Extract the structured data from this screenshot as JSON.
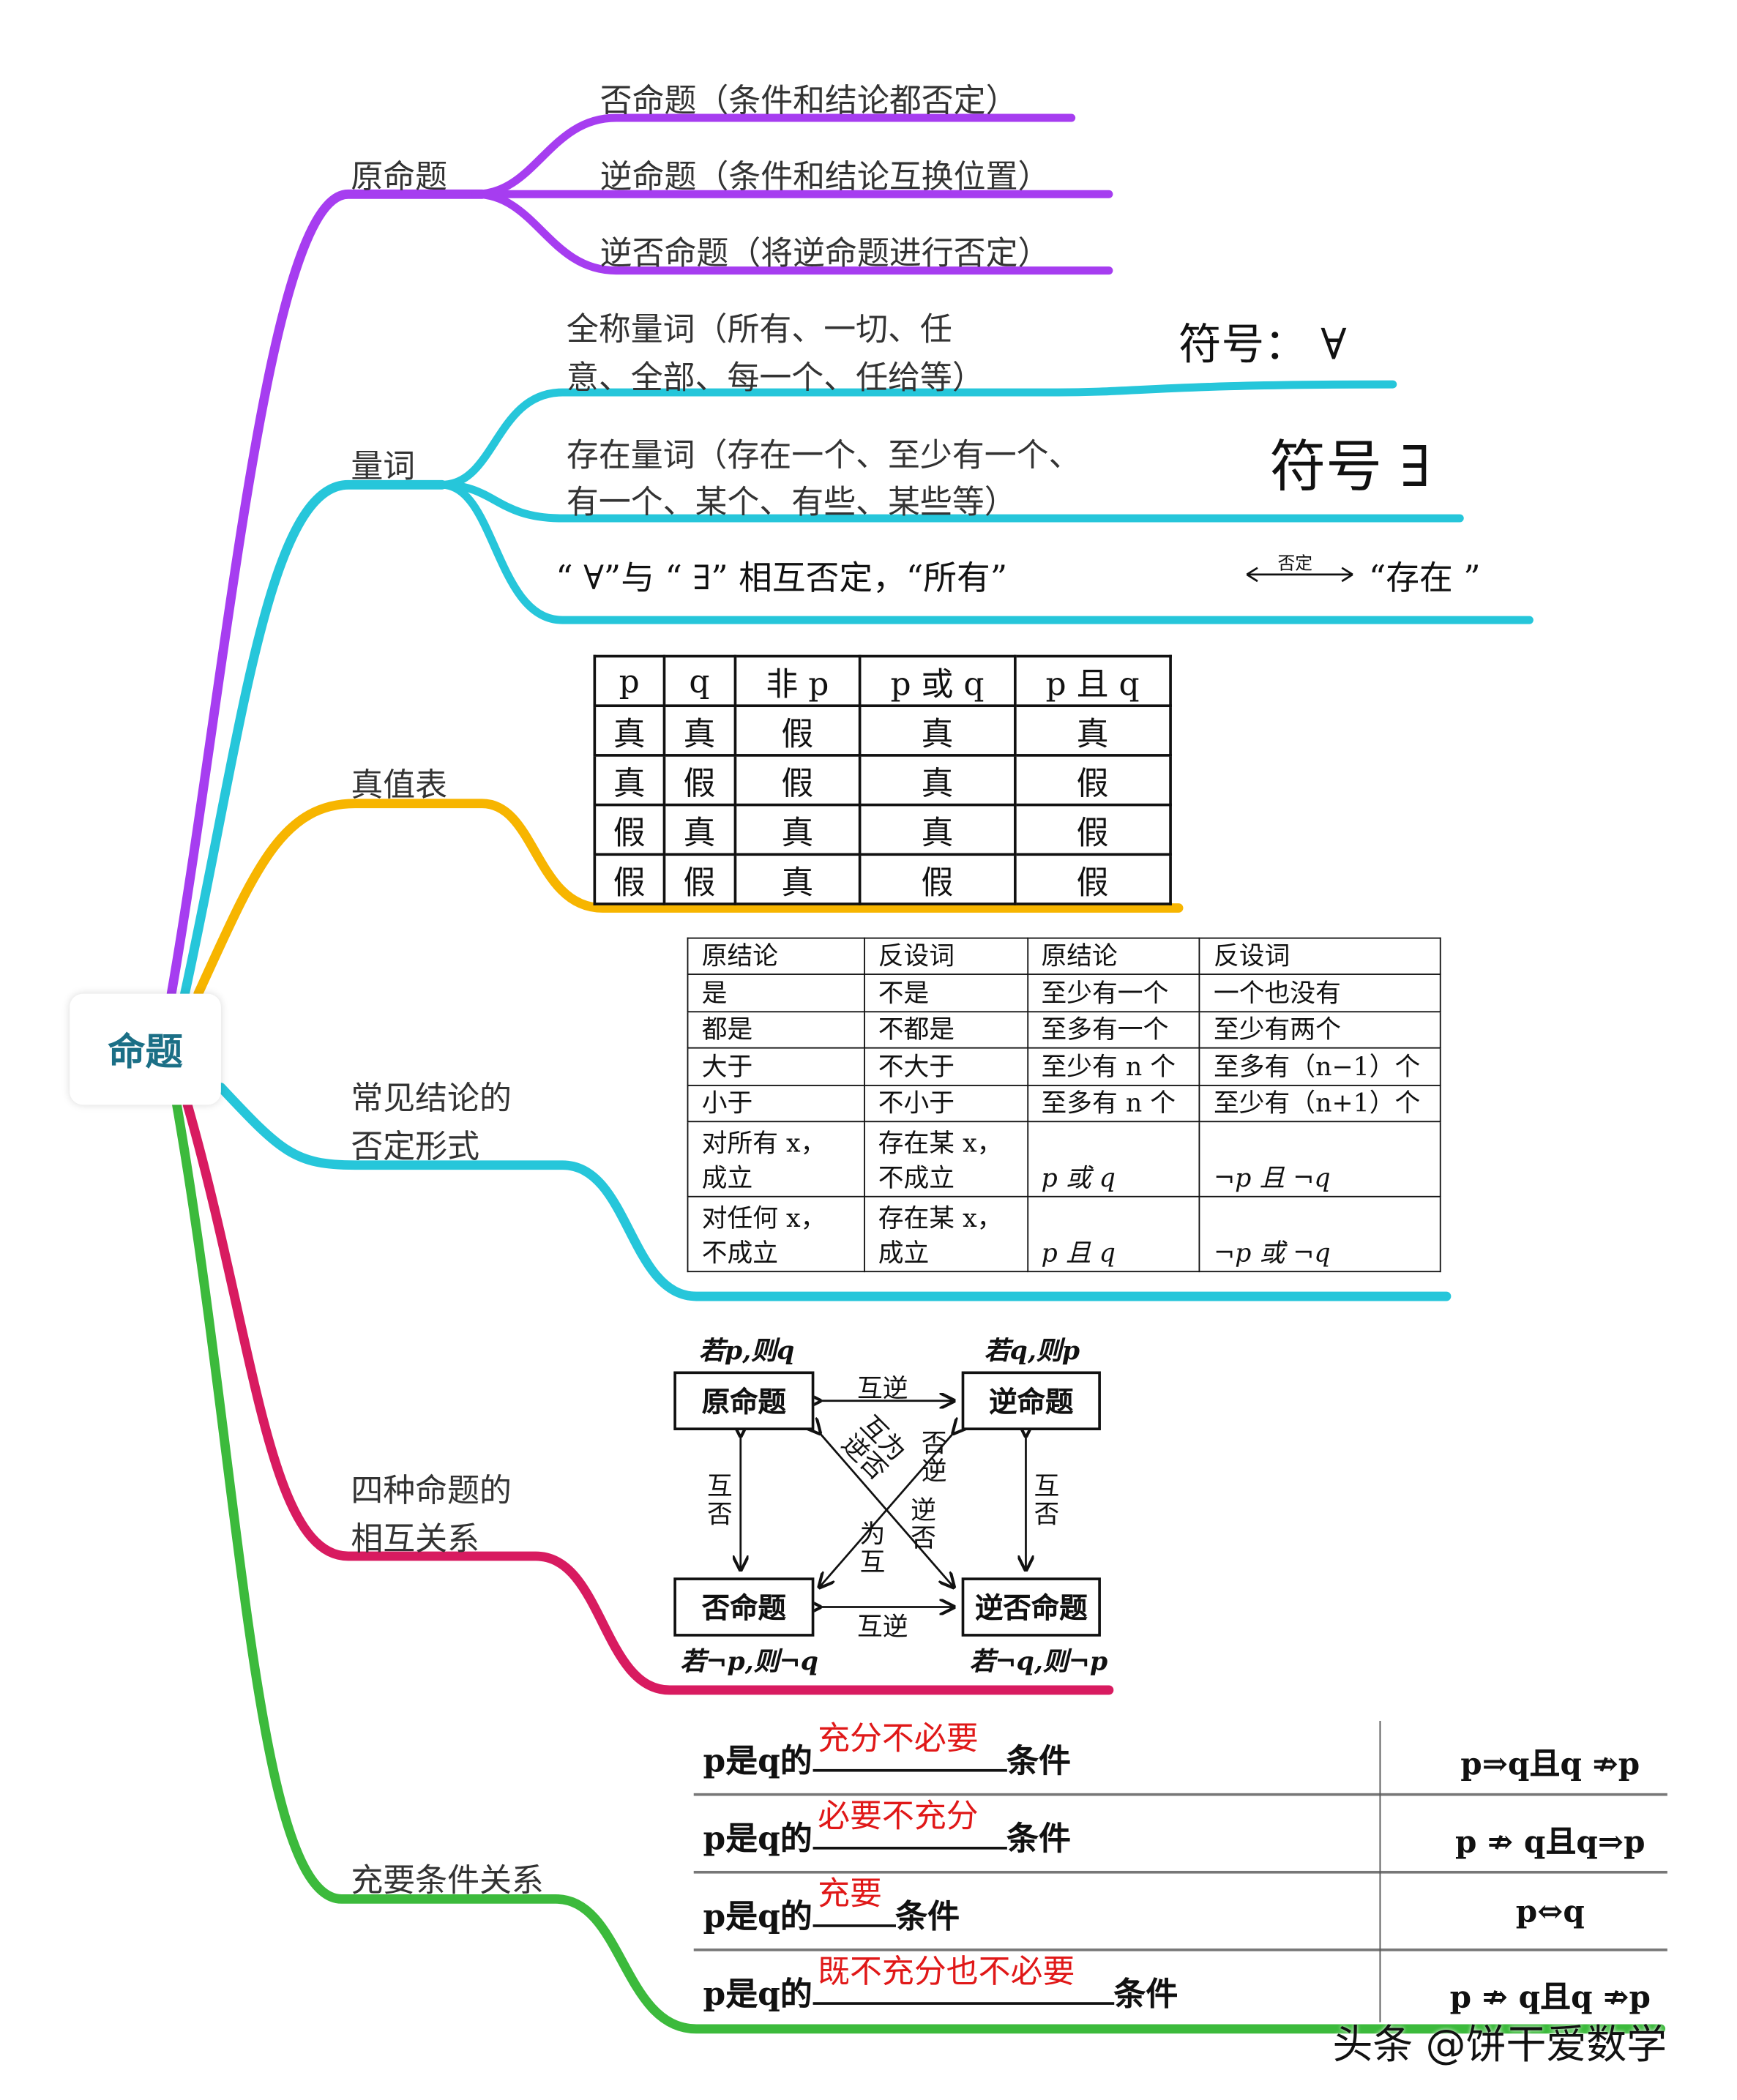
{
  "root": {
    "label": "命题"
  },
  "colors": {
    "purple": "#a63df0",
    "cyan": "#26c6da",
    "yellow": "#f7b500",
    "magenta": "#d81b60",
    "green": "#3cba3c",
    "root_text": "#1b6f86",
    "answer_red": "#e01818"
  },
  "branches": {
    "original": {
      "label": "原命题",
      "children": [
        "否命题（条件和结论都否定）",
        "逆命题（条件和结论互换位置）",
        "逆否命题（将逆命题进行否定）"
      ]
    },
    "quantifier": {
      "label": "量词",
      "universal": {
        "line1": "全称量词（所有、一切、任",
        "line2": "意、全部、每一个、任给等）",
        "symbol": "符号：  ∀"
      },
      "existential": {
        "line1": "存在量词（存在一个、至少有一个、",
        "line2": "有一个、某个、有些、某些等）",
        "symbol": "符号 ∃"
      },
      "negation": {
        "text_left": "“ ∀”与 “ ∃” 相互否定，“所有”",
        "arrow_label": "否定",
        "text_right": "“存在 ”"
      }
    },
    "truth_table": {
      "label": "真值表",
      "headers": [
        "p",
        "q",
        "非 p",
        "p 或 q",
        "p 且 q"
      ],
      "rows": [
        [
          "真",
          "真",
          "假",
          "真",
          "真"
        ],
        [
          "真",
          "假",
          "假",
          "真",
          "假"
        ],
        [
          "假",
          "真",
          "真",
          "真",
          "假"
        ],
        [
          "假",
          "假",
          "真",
          "假",
          "假"
        ]
      ]
    },
    "negation_forms": {
      "label_line1": "常见结论的",
      "label_line2": "否定形式",
      "headers": [
        "原结论",
        "反设词",
        "原结论",
        "反设词"
      ],
      "rows": [
        [
          "是",
          "不是",
          "至少有一个",
          "一个也没有"
        ],
        [
          "都是",
          "不都是",
          "至多有一个",
          "至少有两个"
        ],
        [
          "大于",
          "不大于",
          "至少有 n 个",
          "至多有（n−1）个"
        ],
        [
          "小于",
          "不小于",
          "至多有 n 个",
          "至少有（n+1）个"
        ],
        [
          "对所有 x，\n成立",
          "存在某 x，\n不成立",
          "p 或 q",
          "¬p 且 ¬q"
        ],
        [
          "对任何 x，\n不成立",
          "存在某 x，\n成立",
          "p 且 q",
          "¬p 或 ¬q"
        ]
      ]
    },
    "four_propositions": {
      "label_line1": "四种命题的",
      "label_line2": "相互关系",
      "boxes": {
        "original": "原命题",
        "converse": "逆命题",
        "inverse": "否命题",
        "contrapositive": "逆否命题"
      },
      "forms": {
        "original": "若p,则q",
        "converse": "若q,则p",
        "inverse": "若¬p,则¬q",
        "contrapositive": "若¬q,则¬p"
      },
      "relations": {
        "top": "互逆",
        "bottom": "互逆",
        "left": "互否",
        "right": "互否",
        "diag1": "互为逆否",
        "diag2": "否逆",
        "diag3": "逆否",
        "diag4": "为互"
      }
    },
    "conditions": {
      "label": "充要条件关系",
      "prefix": "p是q的",
      "suffix": "条件",
      "rows": [
        {
          "answer": "充分不必要",
          "relation": "p⇒q且q ⇏p"
        },
        {
          "answer": "必要不充分",
          "relation": "p ⇏ q且q⇒p"
        },
        {
          "answer": "充要",
          "relation": "p⇔q"
        },
        {
          "answer": "既不充分也不必要",
          "relation": "p ⇏ q且q ⇏p"
        }
      ]
    }
  },
  "attribution": "头条 @饼干爱数学"
}
